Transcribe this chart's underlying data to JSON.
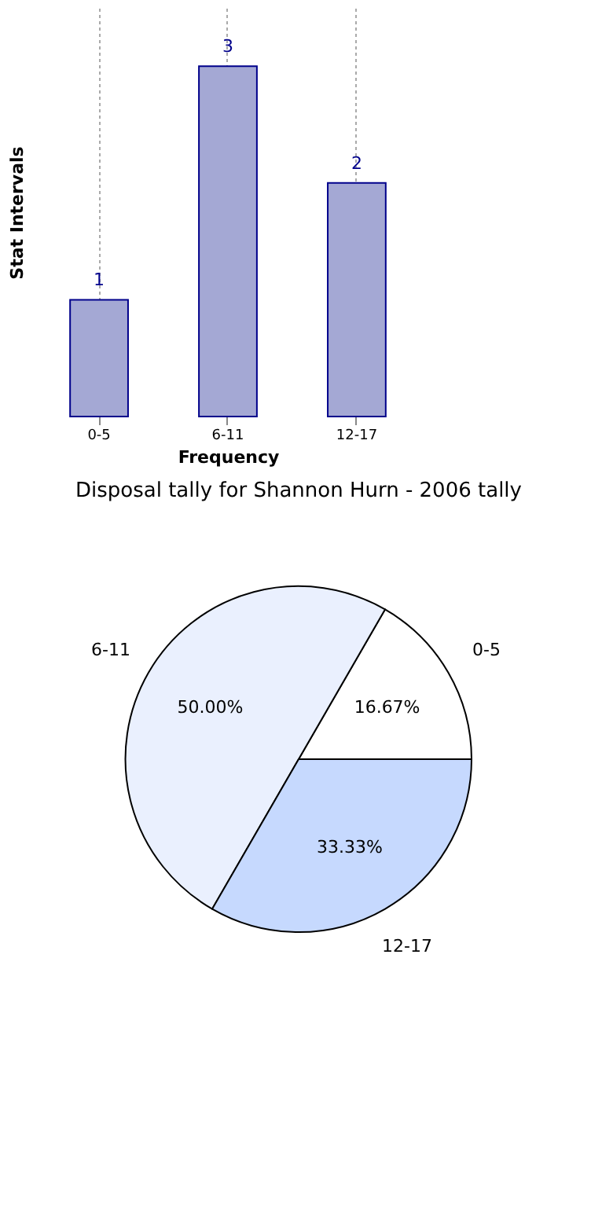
{
  "chart_data": [
    {
      "type": "bar",
      "xlabel": "Frequency",
      "ylabel": "Stat Intervals",
      "categories": [
        "0-5",
        "6-11",
        "12-17"
      ],
      "values": [
        1,
        3,
        2
      ],
      "color": "#a4a8d4",
      "ylim": [
        0,
        3.5
      ],
      "data_labels": true,
      "grid": "x",
      "tick_labels": "x"
    },
    {
      "type": "pie",
      "title": "Disposal tally for Shannon Hurn - 2006 tally",
      "categories": [
        "0-5",
        "6-11",
        "12-17"
      ],
      "values": [
        16.67,
        50.0,
        33.33
      ],
      "colors": [
        "#ffffff",
        "#eaf0fe",
        "#c6d9fe"
      ],
      "value_labels": [
        "16.67%",
        "50.00%",
        "33.33%"
      ],
      "legend": false
    }
  ]
}
